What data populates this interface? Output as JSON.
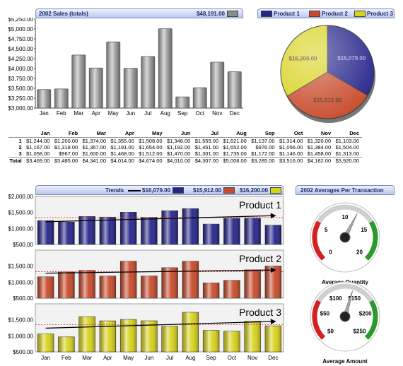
{
  "months": [
    "Jan",
    "Feb",
    "Mar",
    "Apr",
    "May",
    "Jun",
    "Jul",
    "Aug",
    "Sep",
    "Oct",
    "Nov",
    "Dec"
  ],
  "colors": {
    "p1": "#24248a",
    "p2": "#c84a2a",
    "p3": "#d8d21a",
    "gray": "#8c8c8c",
    "header": "#b9c6ec"
  },
  "chart_data": [
    {
      "type": "bar",
      "title": "2002 Sales (totals)",
      "header_value": "$48,191.00",
      "categories": [
        "Jan",
        "Feb",
        "Mar",
        "Apr",
        "May",
        "Jun",
        "Jul",
        "Aug",
        "Sep",
        "Oct",
        "Nov",
        "Dec"
      ],
      "values": [
        3469,
        3485,
        4341,
        4014,
        4674,
        4010,
        4307,
        5008,
        3285,
        3516,
        4162,
        3920
      ],
      "ylim": [
        3000,
        5250
      ],
      "yticks": [
        "$3,000.00",
        "$3,250.00",
        "$3,500.00",
        "$3,750.00",
        "$4,000.00",
        "$4,250.00",
        "$4,500.00",
        "$4,750.00",
        "$5,000.00",
        "$5,250.00"
      ],
      "grid": false
    },
    {
      "type": "pie",
      "legend": [
        "Product 1",
        "Product 2",
        "Product 3"
      ],
      "legend_placement": "top",
      "slices": [
        {
          "name": "Product 1",
          "value": 16079,
          "label": "$16,079.00"
        },
        {
          "name": "Product 2",
          "value": 15912,
          "label": "$15,912.00"
        },
        {
          "name": "Product 3",
          "value": 16200,
          "label": "$16,200.00"
        }
      ]
    },
    {
      "type": "table",
      "columns": [
        "",
        "Jan",
        "Feb",
        "Mar",
        "Apr",
        "May",
        "Jun",
        "Jul",
        "Aug",
        "Sep",
        "Oct",
        "Nov",
        "Dec"
      ],
      "rows": [
        [
          "1",
          "$1,244.00",
          "$1,200.00",
          "$1,374.00",
          "$1,355.00",
          "$1,508.00",
          "$1,348.00",
          "$1,555.00",
          "$1,621.00",
          "$1,137.00",
          "$1,314.00",
          "$1,320.00",
          "$1,103.00"
        ],
        [
          "2",
          "$1,167.00",
          "$1,318.00",
          "$1,367.00",
          "$1,191.00",
          "$1,654.00",
          "$1,192.00",
          "$1,451.00",
          "$1,652.00",
          "$976.00",
          "$1,056.00",
          "$1,384.00",
          "$1,504.00"
        ],
        [
          "3",
          "$1,058.00",
          "$967.00",
          "$1,600.00",
          "$1,468.00",
          "$1,512.00",
          "$1,470.00",
          "$1,301.00",
          "$1,735.00",
          "$1,172.00",
          "$1,146.00",
          "$1,458.00",
          "$1,313.00"
        ],
        [
          "Total",
          "$3,469.00",
          "$3,485.00",
          "$4,341.00",
          "$4,014.00",
          "$4,674.00",
          "$4,010.00",
          "$4,307.00",
          "$5,008.00",
          "$3,285.00",
          "$3,516.00",
          "$4,162.00",
          "$3,920.00"
        ]
      ]
    },
    {
      "type": "bar",
      "header_label": "Trends",
      "series_totals": [
        "$16,079.00",
        "$15,912.00",
        "$16,200.00"
      ],
      "categories": [
        "Jan",
        "Feb",
        "Mar",
        "Apr",
        "May",
        "Jun",
        "Jul",
        "Aug",
        "Sep",
        "Oct",
        "Nov",
        "Dec"
      ],
      "ylim": [
        500,
        2000
      ],
      "yticks": [
        "$500.00",
        "$1,000.00",
        "$1,500.00",
        "$2,000.00"
      ],
      "panels": [
        {
          "name": "Product 1",
          "values": [
            1244,
            1200,
            1374,
            1355,
            1508,
            1348,
            1555,
            1621,
            1137,
            1314,
            1320,
            1103
          ],
          "average": 1340,
          "trend": [
            1210,
            1400
          ]
        },
        {
          "name": "Product 2",
          "values": [
            1167,
            1318,
            1367,
            1191,
            1654,
            1192,
            1451,
            1652,
            976,
            1056,
            1384,
            1504
          ],
          "average": 1326,
          "trend": [
            1280,
            1380
          ]
        },
        {
          "name": "Product 3",
          "values": [
            1058,
            967,
            1600,
            1468,
            1512,
            1470,
            1301,
            1735,
            1172,
            1146,
            1458,
            1313
          ],
          "average": 1350,
          "trend": [
            1240,
            1450
          ]
        }
      ]
    },
    {
      "type": "gauge",
      "title": "2002 Averages Per Transaction",
      "gauges": [
        {
          "label": "Average Quantity",
          "min": 0,
          "max": 20,
          "value": 12,
          "ticks": [
            "0",
            "5",
            "10",
            "15",
            "20"
          ]
        },
        {
          "label": "Average Amount",
          "min": 0,
          "max": 250,
          "value": 140,
          "ticks": [
            "$0",
            "$50",
            "$100",
            "$150",
            "$200",
            "$250"
          ]
        }
      ]
    }
  ]
}
